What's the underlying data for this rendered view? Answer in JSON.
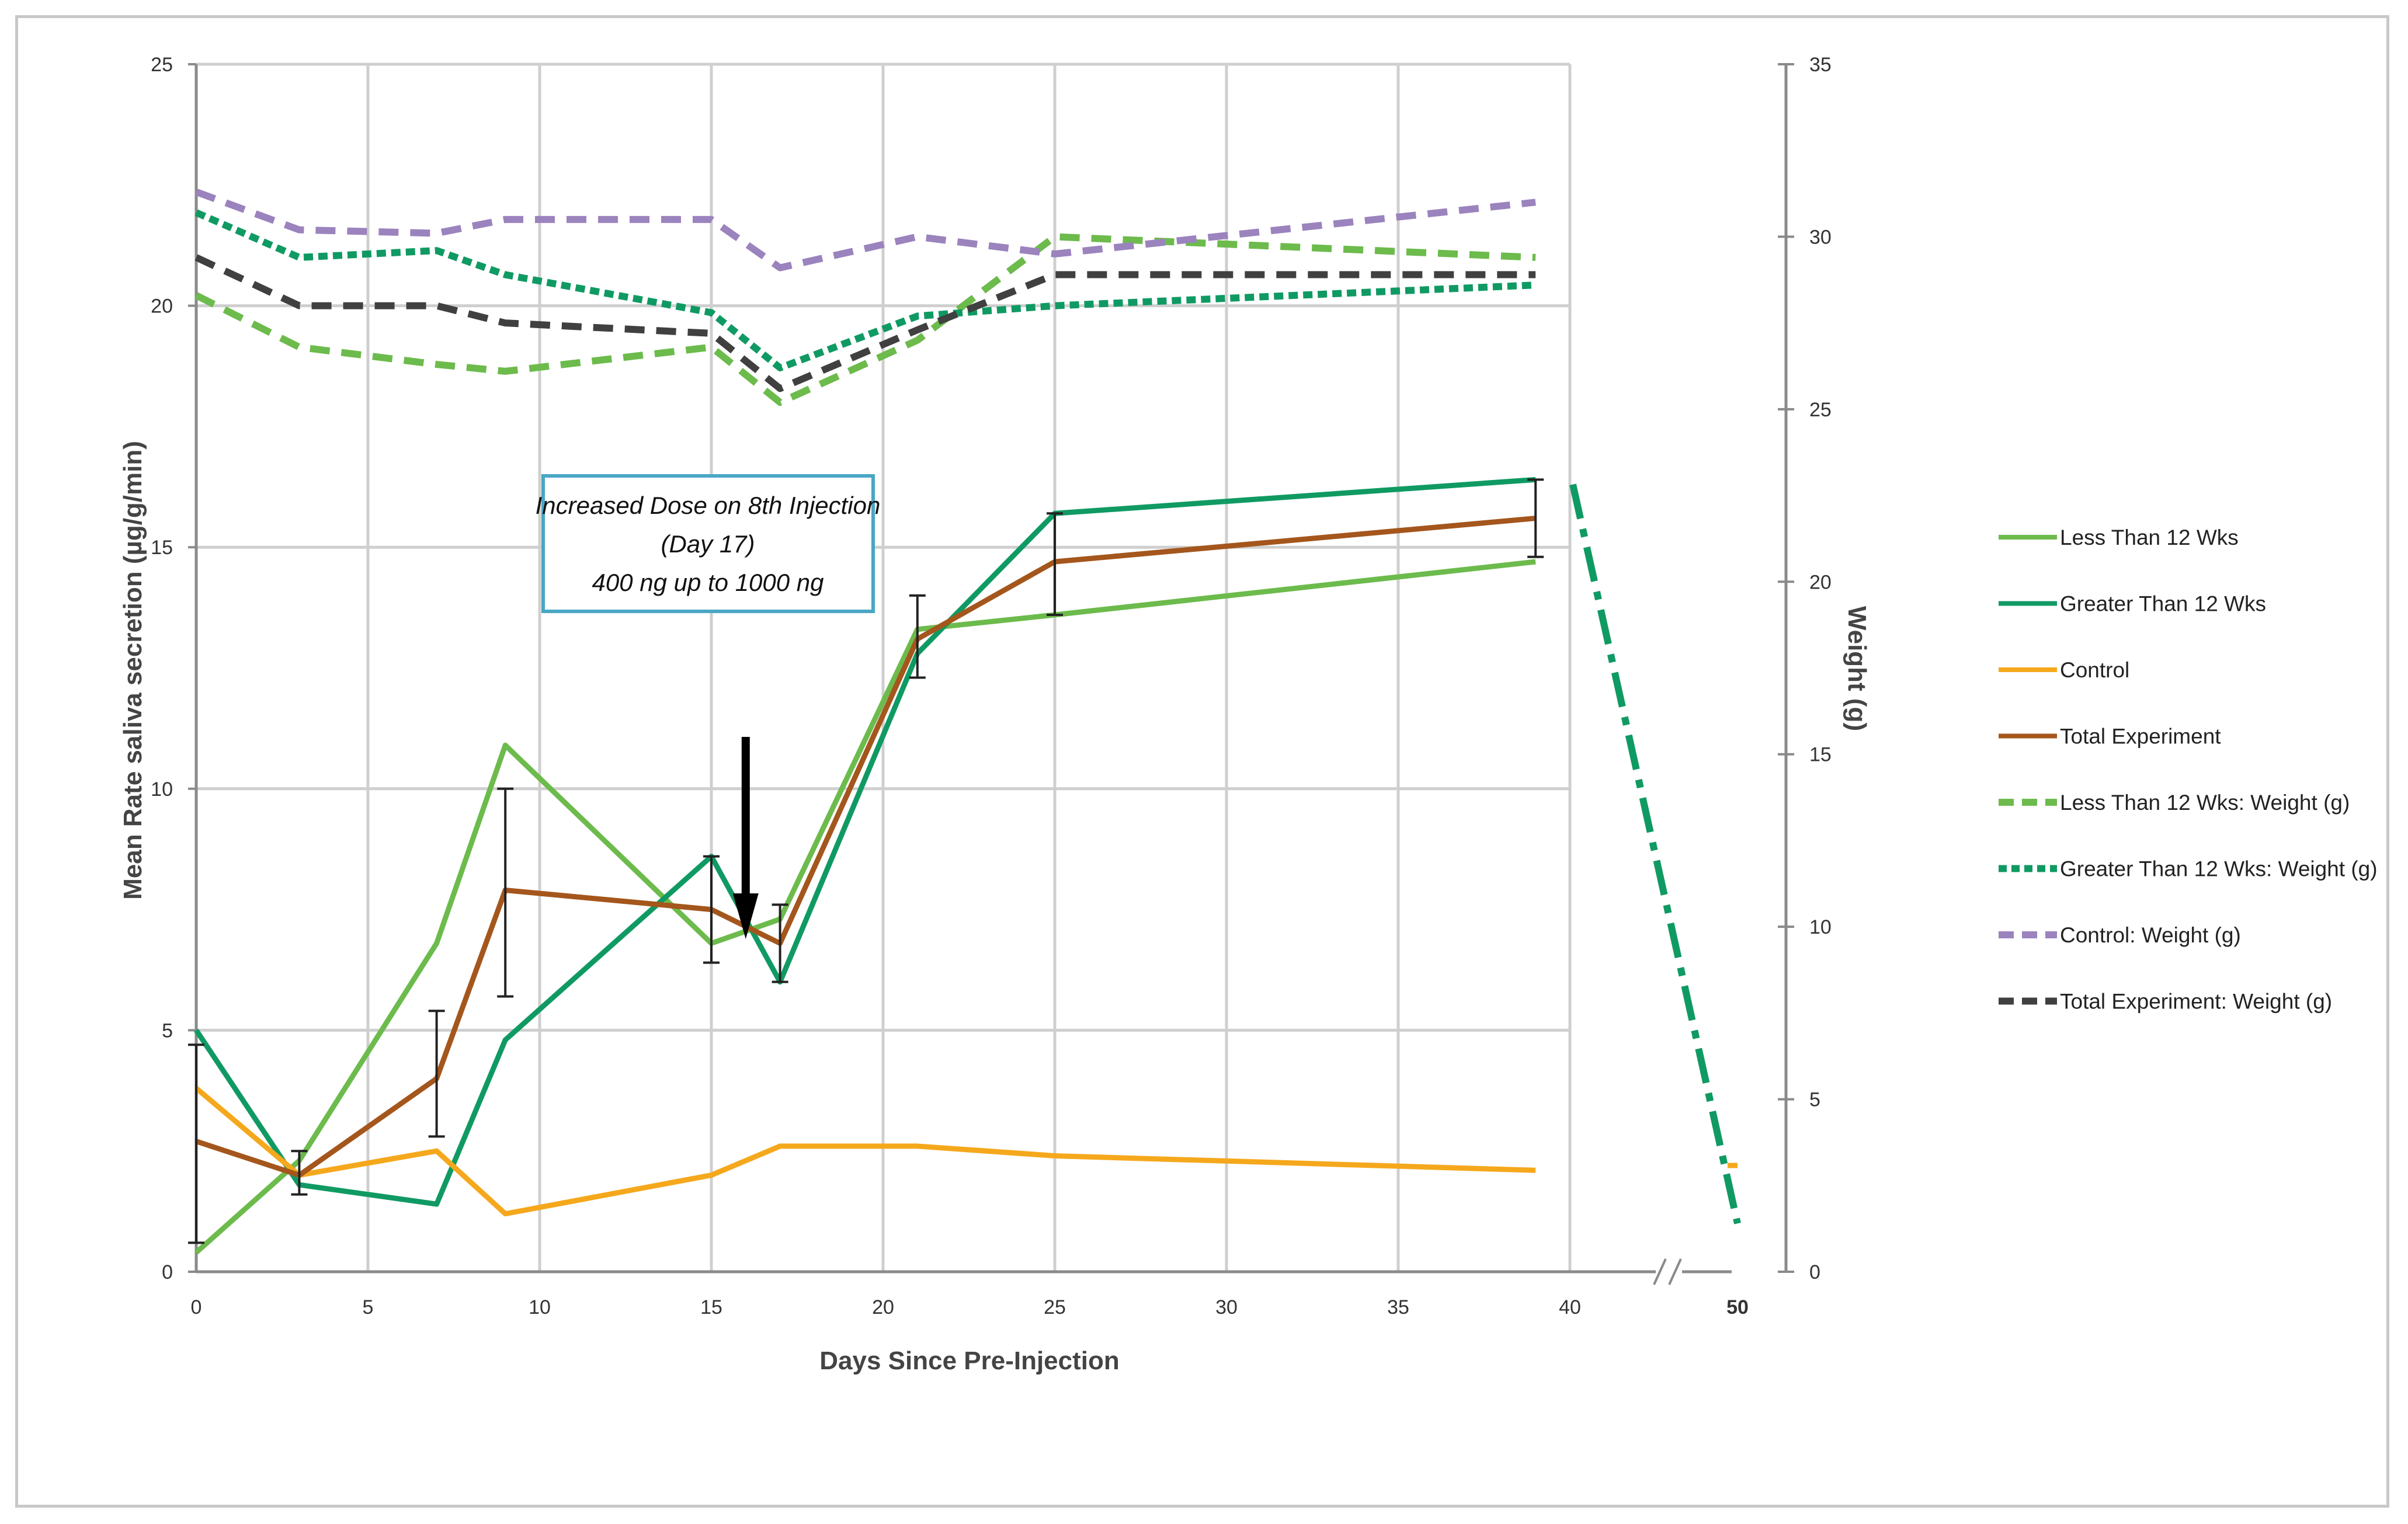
{
  "chart_data": {
    "type": "line",
    "title": "",
    "xlabel": "Days Since Pre-Injection",
    "ylabel": "Mean Rate saliva secretion  (µg/g/min)",
    "y2label": "Weight (g)",
    "xlim": [
      0,
      40
    ],
    "xticks": [
      "0",
      "5",
      "10",
      "15",
      "20",
      "25",
      "30",
      "35",
      "40"
    ],
    "x_break_tick": "50",
    "ylim": [
      0,
      25
    ],
    "yticks": [
      "0",
      "5",
      "10",
      "15",
      "20",
      "25"
    ],
    "y2lim": [
      0,
      35
    ],
    "y2ticks": [
      "0",
      "5",
      "10",
      "15",
      "20",
      "25",
      "30",
      "35"
    ],
    "grid": true,
    "legend_position": "right",
    "annotation": {
      "lines": [
        "Increased Dose on 8th Injection",
        "(Day 17)",
        "400 ng up to 1000 ng"
      ],
      "arrow_x": 16
    },
    "series": [
      {
        "name": "Less Than 12 Wks",
        "axis": "left",
        "style": "solid",
        "color": "#6cbb4c",
        "x": [
          0,
          3,
          7,
          9,
          15,
          17,
          21,
          25,
          39
        ],
        "y": [
          0.4,
          2.3,
          6.8,
          10.9,
          6.8,
          7.3,
          13.3,
          13.6,
          14.7
        ]
      },
      {
        "name": "Greater Than 12 Wks",
        "axis": "left",
        "style": "solid",
        "color": "#109a63",
        "x": [
          0,
          3,
          7,
          9,
          15,
          17,
          21,
          25,
          39
        ],
        "y": [
          5.0,
          1.8,
          1.4,
          4.8,
          8.6,
          6.0,
          12.8,
          15.7,
          16.4
        ]
      },
      {
        "name": "Control",
        "axis": "left",
        "style": "solid",
        "color": "#f5a81c",
        "x": [
          0,
          3,
          7,
          9,
          15,
          17,
          21,
          25,
          39
        ],
        "y": [
          3.8,
          2.0,
          2.5,
          1.2,
          2.0,
          2.6,
          2.6,
          2.4,
          2.1
        ]
      },
      {
        "name": "Total Experiment",
        "axis": "left",
        "style": "solid",
        "color": "#a4561c",
        "x": [
          0,
          3,
          7,
          9,
          15,
          17,
          21,
          25,
          39
        ],
        "y": [
          2.7,
          2.0,
          4.0,
          7.9,
          7.5,
          6.8,
          13.1,
          14.7,
          15.6
        ]
      },
      {
        "name": "Less Than 12 Wks: Weight (g)",
        "axis": "right",
        "style": "dashed",
        "color": "#6cbb4c",
        "x": [
          0,
          3,
          7,
          9,
          15,
          17,
          21,
          25,
          39
        ],
        "y": [
          28.3,
          26.8,
          26.3,
          26.1,
          26.8,
          25.2,
          27.0,
          30.0,
          29.4
        ]
      },
      {
        "name": "Greater Than 12 Wks: Weight (g)",
        "axis": "right",
        "style": "dotted",
        "color": "#109a63",
        "x": [
          0,
          3,
          7,
          9,
          15,
          17,
          21,
          25,
          39
        ],
        "y": [
          30.7,
          29.4,
          29.6,
          28.9,
          27.8,
          26.2,
          27.7,
          28.0,
          28.6
        ]
      },
      {
        "name": "Control: Weight (g)",
        "axis": "right",
        "style": "dashed",
        "color": "#9b83be",
        "x": [
          0,
          3,
          7,
          9,
          15,
          17,
          21,
          25,
          39
        ],
        "y": [
          31.3,
          30.2,
          30.1,
          30.5,
          30.5,
          29.1,
          30.0,
          29.5,
          31.0
        ]
      },
      {
        "name": "Total Experiment: Weight (g)",
        "axis": "right",
        "style": "dashed",
        "color": "#404040",
        "x": [
          0,
          3,
          7,
          9,
          15,
          17,
          21,
          25,
          39
        ],
        "y": [
          29.4,
          28.0,
          28.0,
          27.5,
          27.2,
          25.6,
          27.3,
          28.9,
          28.9
        ]
      }
    ],
    "error_bars": [
      {
        "x": 0,
        "low": 0.6,
        "high": 4.7
      },
      {
        "x": 3,
        "low": 1.6,
        "high": 2.5
      },
      {
        "x": 7,
        "low": 2.8,
        "high": 5.4
      },
      {
        "x": 9,
        "low": 5.7,
        "high": 10.0
      },
      {
        "x": 15,
        "low": 6.4,
        "high": 8.6
      },
      {
        "x": 17,
        "low": 6.0,
        "high": 7.6
      },
      {
        "x": 21,
        "low": 12.3,
        "high": 14.0
      },
      {
        "x": 25,
        "low": 13.6,
        "high": 15.7
      },
      {
        "x": 39,
        "low": 14.8,
        "high": 16.4
      }
    ],
    "day50_extrapolation": {
      "series": "Greater Than 12 Wks",
      "from_y": 16.3,
      "to_y": 1.0,
      "control_y": 2.2
    }
  }
}
